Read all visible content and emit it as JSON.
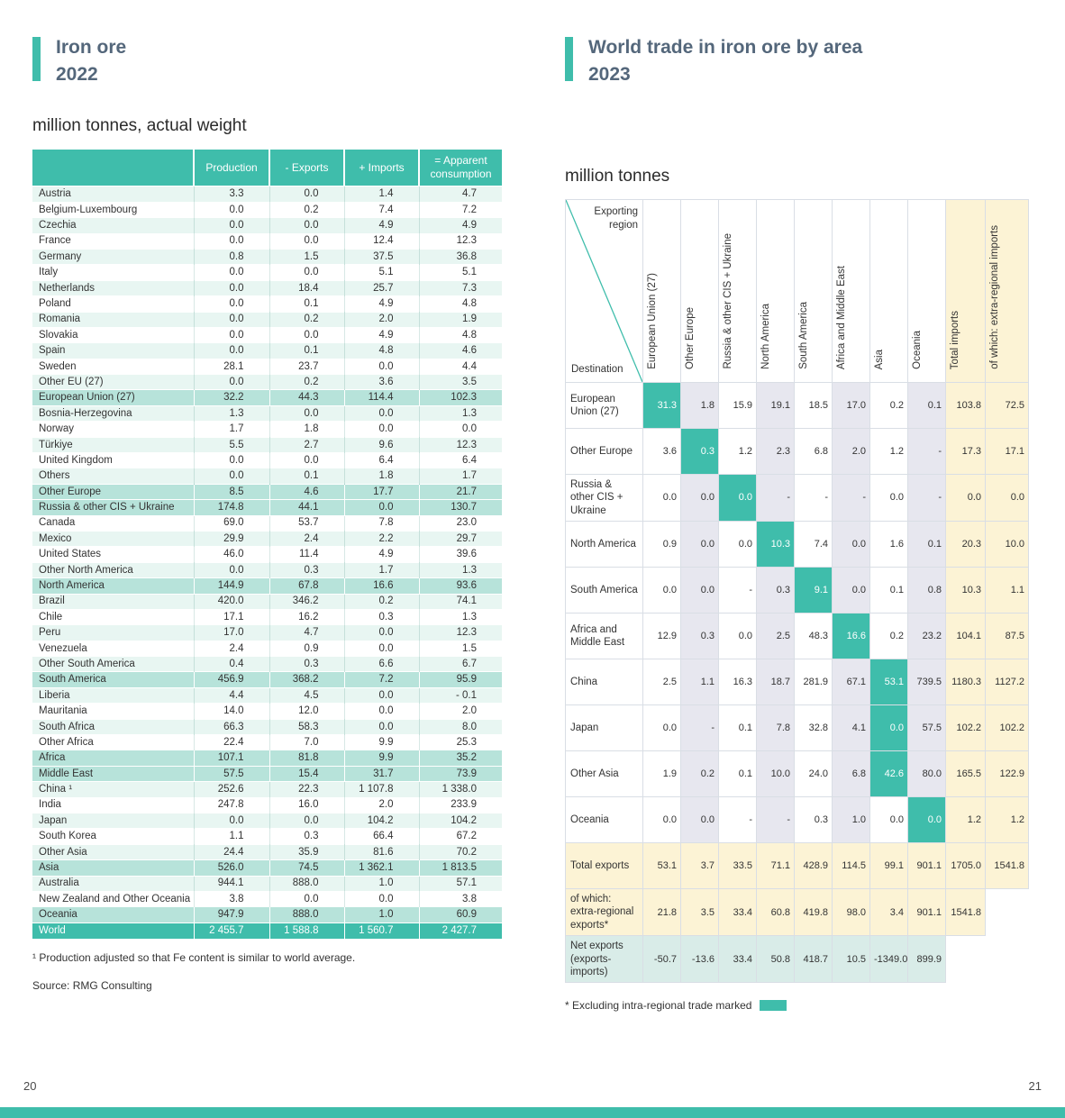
{
  "page": {
    "left_page_number": "20",
    "right_page_number": "21"
  },
  "colors": {
    "accent_teal": "#3fbdab",
    "row_stripe_mint": "#e8f6f2",
    "region_total_row": "#b7e3da",
    "totals_cream": "#fcf3d5",
    "shaded_column": "#e7e7ef",
    "net_exports_row": "#d9ece8",
    "title_slate": "#54677b"
  },
  "left": {
    "title_line1": "Iron ore",
    "title_line2": "2022",
    "subtitle": "million tonnes, actual weight",
    "footnote": "¹  Production adjusted so that Fe content is similar to world average.",
    "source": "Source: RMG Consulting",
    "table": {
      "headers": [
        "Production",
        "- Exports",
        "+ Imports",
        "= Apparent consumption"
      ],
      "rows": [
        {
          "label": "Austria",
          "type": "normal",
          "values": [
            "3.3",
            "0.0",
            "1.4",
            "4.7"
          ]
        },
        {
          "label": "Belgium-Luxembourg",
          "type": "normal",
          "values": [
            "0.0",
            "0.2",
            "7.4",
            "7.2"
          ]
        },
        {
          "label": "Czechia",
          "type": "normal",
          "values": [
            "0.0",
            "0.0",
            "4.9",
            "4.9"
          ]
        },
        {
          "label": "France",
          "type": "normal",
          "values": [
            "0.0",
            "0.0",
            "12.4",
            "12.3"
          ]
        },
        {
          "label": "Germany",
          "type": "normal",
          "values": [
            "0.8",
            "1.5",
            "37.5",
            "36.8"
          ]
        },
        {
          "label": "Italy",
          "type": "normal",
          "values": [
            "0.0",
            "0.0",
            "5.1",
            "5.1"
          ]
        },
        {
          "label": "Netherlands",
          "type": "normal",
          "values": [
            "0.0",
            "18.4",
            "25.7",
            "7.3"
          ]
        },
        {
          "label": "Poland",
          "type": "normal",
          "values": [
            "0.0",
            "0.1",
            "4.9",
            "4.8"
          ]
        },
        {
          "label": "Romania",
          "type": "normal",
          "values": [
            "0.0",
            "0.2",
            "2.0",
            "1.9"
          ]
        },
        {
          "label": "Slovakia",
          "type": "normal",
          "values": [
            "0.0",
            "0.0",
            "4.9",
            "4.8"
          ]
        },
        {
          "label": "Spain",
          "type": "normal",
          "values": [
            "0.0",
            "0.1",
            "4.8",
            "4.6"
          ]
        },
        {
          "label": "Sweden",
          "type": "normal",
          "values": [
            "28.1",
            "23.7",
            "0.0",
            "4.4"
          ]
        },
        {
          "label": "Other EU (27)",
          "type": "normal",
          "values": [
            "0.0",
            "0.2",
            "3.6",
            "3.5"
          ]
        },
        {
          "label": "European Union (27)",
          "type": "region",
          "values": [
            "32.2",
            "44.3",
            "114.4",
            "102.3"
          ]
        },
        {
          "label": "Bosnia-Herzegovina",
          "type": "normal",
          "values": [
            "1.3",
            "0.0",
            "0.0",
            "1.3"
          ]
        },
        {
          "label": "Norway",
          "type": "normal",
          "values": [
            "1.7",
            "1.8",
            "0.0",
            "0.0"
          ]
        },
        {
          "label": "Türkiye",
          "type": "normal",
          "values": [
            "5.5",
            "2.7",
            "9.6",
            "12.3"
          ]
        },
        {
          "label": "United Kingdom",
          "type": "normal",
          "values": [
            "0.0",
            "0.0",
            "6.4",
            "6.4"
          ]
        },
        {
          "label": "Others",
          "type": "normal",
          "values": [
            "0.0",
            "0.1",
            "1.8",
            "1.7"
          ]
        },
        {
          "label": "Other Europe",
          "type": "region",
          "values": [
            "8.5",
            "4.6",
            "17.7",
            "21.7"
          ]
        },
        {
          "label": "Russia & other CIS + Ukraine",
          "type": "region",
          "values": [
            "174.8",
            "44.1",
            "0.0",
            "130.7"
          ]
        },
        {
          "label": "Canada",
          "type": "normal",
          "values": [
            "69.0",
            "53.7",
            "7.8",
            "23.0"
          ]
        },
        {
          "label": "Mexico",
          "type": "normal",
          "values": [
            "29.9",
            "2.4",
            "2.2",
            "29.7"
          ]
        },
        {
          "label": "United States",
          "type": "normal",
          "values": [
            "46.0",
            "11.4",
            "4.9",
            "39.6"
          ]
        },
        {
          "label": "Other North America",
          "type": "normal",
          "values": [
            "0.0",
            "0.3",
            "1.7",
            "1.3"
          ]
        },
        {
          "label": "North America",
          "type": "region",
          "values": [
            "144.9",
            "67.8",
            "16.6",
            "93.6"
          ]
        },
        {
          "label": "Brazil",
          "type": "normal",
          "values": [
            "420.0",
            "346.2",
            "0.2",
            "74.1"
          ]
        },
        {
          "label": "Chile",
          "type": "normal",
          "values": [
            "17.1",
            "16.2",
            "0.3",
            "1.3"
          ]
        },
        {
          "label": "Peru",
          "type": "normal",
          "values": [
            "17.0",
            "4.7",
            "0.0",
            "12.3"
          ]
        },
        {
          "label": "Venezuela",
          "type": "normal",
          "values": [
            "2.4",
            "0.9",
            "0.0",
            "1.5"
          ]
        },
        {
          "label": "Other South America",
          "type": "normal",
          "values": [
            "0.4",
            "0.3",
            "6.6",
            "6.7"
          ]
        },
        {
          "label": "South America",
          "type": "region",
          "values": [
            "456.9",
            "368.2",
            "7.2",
            "95.9"
          ]
        },
        {
          "label": "Liberia",
          "type": "normal",
          "values": [
            "4.4",
            "4.5",
            "0.0",
            "- 0.1"
          ]
        },
        {
          "label": "Mauritania",
          "type": "normal",
          "values": [
            "14.0",
            "12.0",
            "0.0",
            "2.0"
          ]
        },
        {
          "label": "South Africa",
          "type": "normal",
          "values": [
            "66.3",
            "58.3",
            "0.0",
            "8.0"
          ]
        },
        {
          "label": "Other Africa",
          "type": "normal",
          "values": [
            "22.4",
            "7.0",
            "9.9",
            "25.3"
          ]
        },
        {
          "label": "Africa",
          "type": "region",
          "values": [
            "107.1",
            "81.8",
            "9.9",
            "35.2"
          ]
        },
        {
          "label": "Middle East",
          "type": "region",
          "values": [
            "57.5",
            "15.4",
            "31.7",
            "73.9"
          ]
        },
        {
          "label": "China ¹",
          "type": "normal",
          "values": [
            "252.6",
            "22.3",
            "1 107.8",
            "1 338.0"
          ]
        },
        {
          "label": "India",
          "type": "normal",
          "values": [
            "247.8",
            "16.0",
            "2.0",
            "233.9"
          ]
        },
        {
          "label": "Japan",
          "type": "normal",
          "values": [
            "0.0",
            "0.0",
            "104.2",
            "104.2"
          ]
        },
        {
          "label": "South Korea",
          "type": "normal",
          "values": [
            "1.1",
            "0.3",
            "66.4",
            "67.2"
          ]
        },
        {
          "label": "Other Asia",
          "type": "normal",
          "values": [
            "24.4",
            "35.9",
            "81.6",
            "70.2"
          ]
        },
        {
          "label": "Asia",
          "type": "region",
          "values": [
            "526.0",
            "74.5",
            "1 362.1",
            "1 813.5"
          ]
        },
        {
          "label": "Australia",
          "type": "normal",
          "values": [
            "944.1",
            "888.0",
            "1.0",
            "57.1"
          ]
        },
        {
          "label": "New Zealand and Other Oceania",
          "type": "normal",
          "values": [
            "3.8",
            "0.0",
            "0.0",
            "3.8"
          ]
        },
        {
          "label": "Oceania",
          "type": "region",
          "values": [
            "947.9",
            "888.0",
            "1.0",
            "60.9"
          ]
        },
        {
          "label": "World",
          "type": "world",
          "values": [
            "2 455.7",
            "1 588.8",
            "1 560.7",
            "2 427.7"
          ]
        }
      ]
    }
  },
  "right": {
    "title_line1": "World trade in iron ore by area",
    "title_line2": "2023",
    "subtitle": "million tonnes",
    "footnote": "* Excluding intra-regional trade marked",
    "matrix": {
      "corner": {
        "top": "Exporting region",
        "bottom": "Destination"
      },
      "col_headers": [
        "European Union (27)",
        "Other Europe",
        "Russia & other CIS + Ukraine",
        "North America",
        "South America",
        "Africa and Middle East",
        "Asia",
        "Oceania",
        "Total imports",
        "of which: extra-regional imports"
      ],
      "rows": [
        {
          "label": "European Union (27)",
          "type": "normal",
          "diag": 0,
          "values": [
            "31.3",
            "1.8",
            "15.9",
            "19.1",
            "18.5",
            "17.0",
            "0.2",
            "0.1",
            "103.8",
            "72.5"
          ]
        },
        {
          "label": "Other Europe",
          "type": "normal",
          "diag": 1,
          "values": [
            "3.6",
            "0.3",
            "1.2",
            "2.3",
            "6.8",
            "2.0",
            "1.2",
            "-",
            "17.3",
            "17.1"
          ]
        },
        {
          "label": "Russia & other CIS + Ukraine",
          "type": "normal",
          "diag": 2,
          "values": [
            "0.0",
            "0.0",
            "0.0",
            "-",
            "-",
            "-",
            "0.0",
            "-",
            "0.0",
            "0.0"
          ]
        },
        {
          "label": "North America",
          "type": "normal",
          "diag": 3,
          "values": [
            "0.9",
            "0.0",
            "0.0",
            "10.3",
            "7.4",
            "0.0",
            "1.6",
            "0.1",
            "20.3",
            "10.0"
          ]
        },
        {
          "label": "South America",
          "type": "normal",
          "diag": 4,
          "values": [
            "0.0",
            "0.0",
            "-",
            "0.3",
            "9.1",
            "0.0",
            "0.1",
            "0.8",
            "10.3",
            "1.1"
          ]
        },
        {
          "label": "Africa and Middle East",
          "type": "normal",
          "diag": 5,
          "values": [
            "12.9",
            "0.3",
            "0.0",
            "2.5",
            "48.3",
            "16.6",
            "0.2",
            "23.2",
            "104.1",
            "87.5"
          ]
        },
        {
          "label": "China",
          "type": "normal",
          "diag": 6,
          "values": [
            "2.5",
            "1.1",
            "16.3",
            "18.7",
            "281.9",
            "67.1",
            "53.1",
            "739.5",
            "1180.3",
            "1127.2"
          ]
        },
        {
          "label": "Japan",
          "type": "normal",
          "diag": 6,
          "values": [
            "0.0",
            "-",
            "0.1",
            "7.8",
            "32.8",
            "4.1",
            "0.0",
            "57.5",
            "102.2",
            "102.2"
          ]
        },
        {
          "label": "Other Asia",
          "type": "normal",
          "diag": 6,
          "values": [
            "1.9",
            "0.2",
            "0.1",
            "10.0",
            "24.0",
            "6.8",
            "42.6",
            "80.0",
            "165.5",
            "122.9"
          ]
        },
        {
          "label": "Oceania",
          "type": "normal",
          "diag": 7,
          "values": [
            "0.0",
            "0.0",
            "-",
            "-",
            "0.3",
            "1.0",
            "0.0",
            "0.0",
            "1.2",
            "1.2"
          ]
        },
        {
          "label": "Total exports",
          "type": "total",
          "diag": -1,
          "values": [
            "53.1",
            "3.7",
            "33.5",
            "71.1",
            "428.9",
            "114.5",
            "99.1",
            "901.1",
            "1705.0",
            "1541.8"
          ]
        },
        {
          "label": "of which: extra-regional exports*",
          "type": "extra",
          "diag": -1,
          "values": [
            "21.8",
            "3.5",
            "33.4",
            "60.8",
            "419.8",
            "98.0",
            "3.4",
            "901.1",
            "1541.8",
            null
          ]
        },
        {
          "label": "Net exports (exports-imports)",
          "type": "net",
          "diag": -1,
          "values": [
            "-50.7",
            "-13.6",
            "33.4",
            "50.8",
            "418.7",
            "10.5",
            "-1349.0",
            "899.9",
            null,
            null
          ]
        }
      ]
    }
  }
}
